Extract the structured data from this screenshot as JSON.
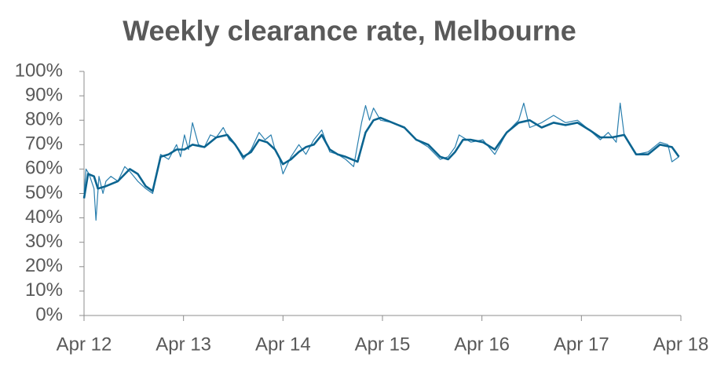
{
  "chart_data": {
    "type": "line",
    "title": "Weekly clearance rate, Melbourne",
    "xlim": [
      2012.25,
      2018.25
    ],
    "xticks": [
      {
        "value": 2012.25,
        "label": "Apr 12"
      },
      {
        "value": 2013.25,
        "label": "Apr 13"
      },
      {
        "value": 2014.25,
        "label": "Apr 14"
      },
      {
        "value": 2015.25,
        "label": "Apr 15"
      },
      {
        "value": 2016.25,
        "label": "Apr 16"
      },
      {
        "value": 2017.25,
        "label": "Apr 17"
      },
      {
        "value": 2018.25,
        "label": "Apr 18"
      }
    ],
    "ylim": [
      0,
      100
    ],
    "yticks": [
      {
        "value": 0,
        "label": "0%"
      },
      {
        "value": 10,
        "label": "10%"
      },
      {
        "value": 20,
        "label": "20%"
      },
      {
        "value": 30,
        "label": "30%"
      },
      {
        "value": 40,
        "label": "40%"
      },
      {
        "value": 50,
        "label": "50%"
      },
      {
        "value": 60,
        "label": "60%"
      },
      {
        "value": 70,
        "label": "70%"
      },
      {
        "value": 80,
        "label": "80%"
      },
      {
        "value": 90,
        "label": "90%"
      },
      {
        "value": 100,
        "label": "100%"
      }
    ],
    "grid": false,
    "series": [
      {
        "color": "#2a7fae",
        "width": 1.2,
        "x": [
          2012.25,
          2012.27,
          2012.3,
          2012.35,
          2012.37,
          2012.4,
          2012.44,
          2012.47,
          2012.52,
          2012.59,
          2012.66,
          2012.71,
          2012.79,
          2012.87,
          2012.94,
          2013.02,
          2013.1,
          2013.18,
          2013.22,
          2013.26,
          2013.3,
          2013.34,
          2013.4,
          2013.46,
          2013.52,
          2013.58,
          2013.65,
          2013.71,
          2013.77,
          2013.85,
          2013.93,
          2014.01,
          2014.07,
          2014.13,
          2014.17,
          2014.21,
          2014.25,
          2014.33,
          2014.41,
          2014.48,
          2014.56,
          2014.64,
          2014.72,
          2014.8,
          2014.88,
          2014.96,
          2015.0,
          2015.04,
          2015.08,
          2015.12,
          2015.16,
          2015.23,
          2015.35,
          2015.47,
          2015.59,
          2015.71,
          2015.83,
          2015.91,
          2015.98,
          2016.02,
          2016.06,
          2016.14,
          2016.26,
          2016.38,
          2016.5,
          2016.62,
          2016.67,
          2016.73,
          2016.85,
          2016.97,
          2017.09,
          2017.21,
          2017.33,
          2017.44,
          2017.52,
          2017.6,
          2017.64,
          2017.68,
          2017.8,
          2017.92,
          2018.04,
          2018.12,
          2018.16,
          2018.23
        ],
        "values": [
          50,
          60,
          58,
          52,
          39,
          57,
          50,
          55,
          57,
          55,
          61,
          59,
          55,
          52,
          50,
          66,
          64,
          70,
          65,
          74,
          68,
          79,
          70,
          69,
          74,
          73,
          77,
          72,
          70,
          64,
          68,
          75,
          72,
          74,
          68,
          65,
          58,
          65,
          70,
          66,
          72,
          76,
          67,
          66,
          64,
          61,
          70,
          79,
          86,
          80,
          85,
          80,
          79,
          77,
          72,
          69,
          64,
          65,
          69,
          74,
          73,
          71,
          72,
          66,
          75,
          80,
          87,
          77,
          79,
          82,
          79,
          80,
          76,
          72,
          75,
          71,
          87,
          74,
          66,
          67,
          71,
          70,
          63,
          65
        ]
      },
      {
        "color": "#0b6490",
        "width": 2.6,
        "x": [
          2012.25,
          2012.29,
          2012.35,
          2012.39,
          2012.47,
          2012.59,
          2012.71,
          2012.79,
          2012.87,
          2012.94,
          2013.02,
          2013.1,
          2013.18,
          2013.26,
          2013.34,
          2013.46,
          2013.58,
          2013.69,
          2013.77,
          2013.85,
          2013.93,
          2014.01,
          2014.09,
          2014.17,
          2014.25,
          2014.33,
          2014.41,
          2014.48,
          2014.56,
          2014.64,
          2014.72,
          2014.8,
          2014.88,
          2015.0,
          2015.08,
          2015.16,
          2015.23,
          2015.35,
          2015.47,
          2015.59,
          2015.71,
          2015.83,
          2015.91,
          2015.98,
          2016.06,
          2016.14,
          2016.26,
          2016.38,
          2016.5,
          2016.62,
          2016.73,
          2016.85,
          2016.97,
          2017.09,
          2017.21,
          2017.33,
          2017.44,
          2017.56,
          2017.68,
          2017.8,
          2017.92,
          2018.04,
          2018.16,
          2018.23
        ],
        "values": [
          48,
          58,
          57,
          52,
          53,
          55,
          60,
          58,
          53,
          51,
          65,
          66,
          68,
          68,
          70,
          69,
          73,
          74,
          70,
          65,
          67,
          72,
          71,
          68,
          62,
          64,
          67,
          69,
          70,
          74,
          68,
          66,
          65,
          63,
          75,
          80,
          81,
          79,
          77,
          72,
          70,
          65,
          64,
          67,
          72,
          72,
          71,
          68,
          75,
          79,
          80,
          77,
          79,
          78,
          79,
          76,
          73,
          73,
          74,
          66,
          66,
          70,
          69,
          65
        ]
      }
    ]
  }
}
